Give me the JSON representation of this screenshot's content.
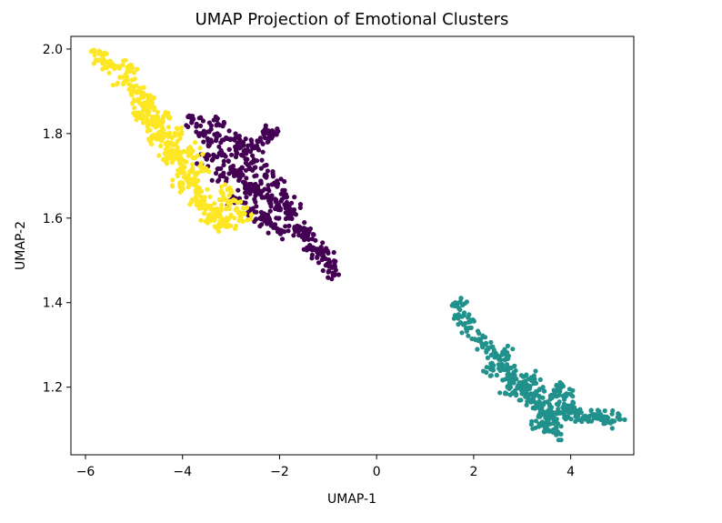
{
  "chart_data": {
    "type": "scatter",
    "title": "UMAP Projection of Emotional Clusters",
    "xlabel": "UMAP-1",
    "ylabel": "UMAP-2",
    "xlim": [
      -6.3,
      5.3
    ],
    "ylim": [
      1.04,
      2.03
    ],
    "xticks": [
      -6,
      -4,
      -2,
      0,
      2,
      4
    ],
    "xtick_labels": [
      "−6",
      "−4",
      "−2",
      "0",
      "2",
      "4"
    ],
    "yticks": [
      1.2,
      1.4,
      1.6,
      1.8,
      2.0
    ],
    "ytick_labels": [
      "1.2",
      "1.4",
      "1.6",
      "1.8",
      "2.0"
    ],
    "grid": false,
    "legend": "none",
    "colormap": "viridis",
    "series": [
      {
        "color": "#440154",
        "points": [
          [
            -3.8,
            1.83
          ],
          [
            -3.6,
            1.8
          ],
          [
            -3.4,
            1.78
          ],
          [
            -3.2,
            1.75
          ],
          [
            -3.0,
            1.72
          ],
          [
            -2.9,
            1.76
          ],
          [
            -2.8,
            1.7
          ],
          [
            -2.7,
            1.74
          ],
          [
            -2.6,
            1.68
          ],
          [
            -2.5,
            1.72
          ],
          [
            -2.4,
            1.66
          ],
          [
            -2.3,
            1.7
          ],
          [
            -2.2,
            1.64
          ],
          [
            -2.1,
            1.68
          ],
          [
            -2.0,
            1.62
          ],
          [
            -1.9,
            1.65
          ],
          [
            -1.8,
            1.6
          ],
          [
            -1.7,
            1.62
          ],
          [
            -1.6,
            1.58
          ],
          [
            -1.5,
            1.56
          ],
          [
            -1.4,
            1.55
          ],
          [
            -1.3,
            1.53
          ],
          [
            -1.2,
            1.52
          ],
          [
            -1.1,
            1.51
          ],
          [
            -1.0,
            1.49
          ],
          [
            -0.9,
            1.47
          ],
          [
            -3.3,
            1.82
          ],
          [
            -3.1,
            1.79
          ],
          [
            -2.8,
            1.78
          ],
          [
            -2.5,
            1.77
          ],
          [
            -2.3,
            1.79
          ],
          [
            -2.2,
            1.8
          ],
          [
            -2.9,
            1.64
          ],
          [
            -2.6,
            1.62
          ],
          [
            -2.4,
            1.6
          ],
          [
            -2.2,
            1.59
          ],
          [
            -2.0,
            1.57
          ],
          [
            -3.5,
            1.74
          ],
          [
            -3.2,
            1.7
          ],
          [
            -2.7,
            1.66
          ]
        ]
      },
      {
        "color": "#21918c",
        "points": [
          [
            1.7,
            1.4
          ],
          [
            1.8,
            1.37
          ],
          [
            1.9,
            1.34
          ],
          [
            2.1,
            1.31
          ],
          [
            2.3,
            1.29
          ],
          [
            2.5,
            1.27
          ],
          [
            2.6,
            1.25
          ],
          [
            2.7,
            1.23
          ],
          [
            2.8,
            1.22
          ],
          [
            2.9,
            1.2
          ],
          [
            3.0,
            1.19
          ],
          [
            3.1,
            1.18
          ],
          [
            3.2,
            1.17
          ],
          [
            3.3,
            1.16
          ],
          [
            3.4,
            1.15
          ],
          [
            3.5,
            1.14
          ],
          [
            3.6,
            1.13
          ],
          [
            3.7,
            1.12
          ],
          [
            3.8,
            1.14
          ],
          [
            3.9,
            1.15
          ],
          [
            4.0,
            1.14
          ],
          [
            4.1,
            1.13
          ],
          [
            4.3,
            1.13
          ],
          [
            4.5,
            1.13
          ],
          [
            4.7,
            1.13
          ],
          [
            4.9,
            1.12
          ],
          [
            2.4,
            1.24
          ],
          [
            2.7,
            1.2
          ],
          [
            3.0,
            1.21
          ],
          [
            3.3,
            1.19
          ],
          [
            3.6,
            1.18
          ],
          [
            3.9,
            1.18
          ],
          [
            3.5,
            1.1
          ],
          [
            3.7,
            1.09
          ],
          [
            3.4,
            1.11
          ],
          [
            2.6,
            1.28
          ],
          [
            3.2,
            1.22
          ],
          [
            3.8,
            1.2
          ]
        ]
      },
      {
        "color": "#fde725",
        "points": [
          [
            -5.7,
            1.99
          ],
          [
            -5.6,
            1.97
          ],
          [
            -5.5,
            1.96
          ],
          [
            -5.1,
            1.96
          ],
          [
            -5.2,
            1.92
          ],
          [
            -5.0,
            1.9
          ],
          [
            -4.9,
            1.88
          ],
          [
            -4.8,
            1.86
          ],
          [
            -4.7,
            1.85
          ],
          [
            -4.6,
            1.83
          ],
          [
            -4.5,
            1.82
          ],
          [
            -4.4,
            1.8
          ],
          [
            -4.3,
            1.78
          ],
          [
            -4.2,
            1.76
          ],
          [
            -4.1,
            1.74
          ],
          [
            -4.0,
            1.72
          ],
          [
            -3.9,
            1.7
          ],
          [
            -3.8,
            1.68
          ],
          [
            -3.7,
            1.66
          ],
          [
            -3.6,
            1.64
          ],
          [
            -3.5,
            1.63
          ],
          [
            -3.4,
            1.62
          ],
          [
            -3.3,
            1.61
          ],
          [
            -3.2,
            1.6
          ],
          [
            -3.1,
            1.58
          ],
          [
            -2.9,
            1.62
          ],
          [
            -2.8,
            1.6
          ],
          [
            -4.9,
            1.84
          ],
          [
            -4.6,
            1.79
          ],
          [
            -4.3,
            1.74
          ],
          [
            -4.0,
            1.68
          ],
          [
            -3.7,
            1.64
          ],
          [
            -3.4,
            1.6
          ],
          [
            -4.7,
            1.88
          ],
          [
            -4.4,
            1.84
          ],
          [
            -4.1,
            1.8
          ],
          [
            -3.8,
            1.76
          ],
          [
            -3.6,
            1.72
          ],
          [
            -3.2,
            1.66
          ],
          [
            -3.0,
            1.64
          ]
        ]
      }
    ]
  }
}
